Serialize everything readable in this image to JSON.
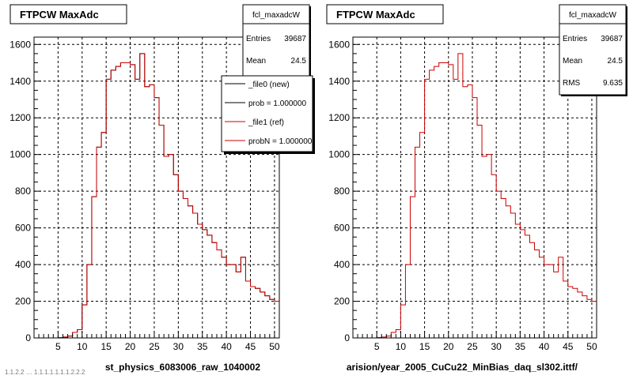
{
  "footer_text": "1.1.2.2 … 1.1.1.1.1.1.1.2.2.2",
  "chart_data": [
    {
      "type": "histogram",
      "title": "FTPCW MaxAdc",
      "xlabel": "st_physics_6083006_raw_1040002",
      "ylabel": "",
      "xlim": [
        0,
        51
      ],
      "ylim": [
        0,
        1640
      ],
      "x_ticks": [
        5,
        10,
        15,
        20,
        25,
        30,
        35,
        40,
        45,
        50
      ],
      "y_ticks": [
        0,
        200,
        400,
        600,
        800,
        1000,
        1200,
        1400,
        1600
      ],
      "grid": true,
      "bin_edges_start": 0,
      "bin_width": 1,
      "series": [
        {
          "name": "_file0 (new)",
          "color": "#000000",
          "values": [
            0,
            0,
            0,
            0,
            0,
            2,
            5,
            10,
            30,
            45,
            180,
            400,
            770,
            1040,
            1120,
            1410,
            1460,
            1480,
            1500,
            1500,
            1490,
            1410,
            1550,
            1370,
            1380,
            1310,
            1160,
            990,
            1000,
            890,
            800,
            760,
            720,
            680,
            620,
            590,
            560,
            520,
            480,
            440,
            400,
            400,
            360,
            440,
            310,
            280,
            270,
            250,
            230,
            210,
            200
          ]
        },
        {
          "name": "_file1 (ref)",
          "color": "#cc0000",
          "values": [
            0,
            0,
            0,
            0,
            0,
            2,
            5,
            10,
            30,
            45,
            180,
            400,
            770,
            1040,
            1120,
            1410,
            1460,
            1480,
            1500,
            1500,
            1490,
            1410,
            1550,
            1370,
            1380,
            1310,
            1160,
            990,
            1000,
            890,
            800,
            760,
            720,
            680,
            620,
            590,
            560,
            520,
            480,
            440,
            400,
            400,
            360,
            440,
            310,
            280,
            270,
            250,
            230,
            210,
            200
          ]
        }
      ],
      "stats": {
        "name": "fcl_maxadcW",
        "entries_label": "Entries",
        "entries": "39687",
        "mean_label": "Mean",
        "mean": "24.5"
      },
      "legend": {
        "placement": "top-right",
        "entries": [
          {
            "label": "_file0 (new)",
            "color": "#000000"
          },
          {
            "label": "prob = 1.000000",
            "color": "#000000"
          },
          {
            "label": "_file1 (ref)",
            "color": "#cc0000"
          },
          {
            "label": "probN = 1.000000",
            "color": "#cc0000"
          }
        ]
      }
    },
    {
      "type": "histogram",
      "title": "FTPCW MaxAdc",
      "xlabel": "arision/year_2005_CuCu22_MinBias_daq_sl302.ittf/",
      "ylabel": "",
      "xlim": [
        0,
        51
      ],
      "ylim": [
        0,
        1640
      ],
      "x_ticks": [
        5,
        10,
        15,
        20,
        25,
        30,
        35,
        40,
        45,
        50
      ],
      "y_ticks": [
        0,
        200,
        400,
        600,
        800,
        1000,
        1200,
        1400,
        1600
      ],
      "grid": true,
      "bin_edges_start": 0,
      "bin_width": 1,
      "series": [
        {
          "name": "fcl_maxadcW",
          "color": "#cc0000",
          "values": [
            0,
            0,
            0,
            0,
            0,
            2,
            5,
            10,
            30,
            45,
            180,
            400,
            770,
            1040,
            1120,
            1410,
            1460,
            1480,
            1500,
            1500,
            1490,
            1410,
            1550,
            1370,
            1380,
            1310,
            1160,
            990,
            1000,
            890,
            800,
            760,
            720,
            680,
            620,
            590,
            560,
            520,
            480,
            440,
            400,
            400,
            360,
            440,
            310,
            280,
            270,
            250,
            230,
            210,
            200
          ]
        }
      ],
      "stats": {
        "name": "fcl_maxadcW",
        "entries_label": "Entries",
        "entries": "39687",
        "mean_label": "Mean",
        "mean": "24.5",
        "rms_label": "RMS",
        "rms": "9.635"
      }
    }
  ]
}
